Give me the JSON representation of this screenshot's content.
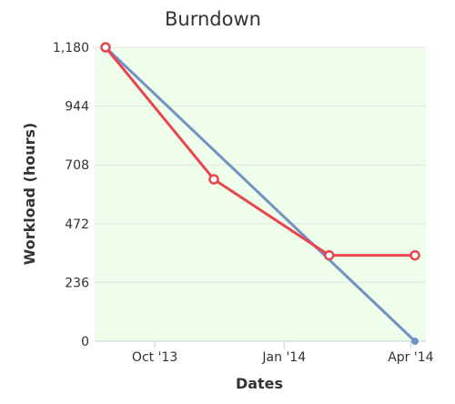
{
  "chart_data": {
    "type": "line",
    "title": "Burndown",
    "xlabel": "Dates",
    "ylabel": "Workload (hours)",
    "x_ticks": [
      "Oct '13",
      "Jan '14",
      "Apr '14"
    ],
    "y_ticks": [
      "0",
      "236",
      "472",
      "708",
      "944",
      "1,180"
    ],
    "ylim": [
      0,
      1180
    ],
    "x_range": [
      "2013-08-27",
      "2014-04-04"
    ],
    "grid": true,
    "legend": "none",
    "series": [
      {
        "color": "#7491c4",
        "points": [
          {
            "x": "2013-08-27",
            "y": 1180
          },
          {
            "x": "2014-04-04",
            "y": 0
          }
        ]
      },
      {
        "color": "#e8454e",
        "points": [
          {
            "x": "2013-08-27",
            "y": 1180
          },
          {
            "x": "2013-11-12",
            "y": 650
          },
          {
            "x": "2014-02-02",
            "y": 345
          },
          {
            "x": "2014-04-04",
            "y": 345
          }
        ]
      }
    ],
    "plot_background": "#eefeea"
  }
}
